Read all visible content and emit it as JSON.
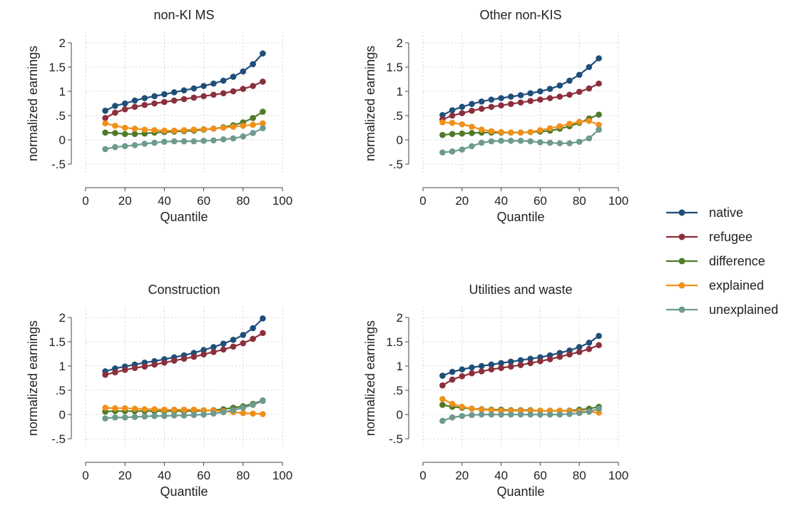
{
  "colors": {
    "native": "#1f4e79",
    "refugee": "#8b2f3c",
    "difference": "#4f7a28",
    "explained": "#f0901a",
    "unexplained": "#6e9a8f"
  },
  "legend": {
    "placement": "right",
    "entries": [
      "native",
      "refugee",
      "difference",
      "explained",
      "unexplained"
    ]
  },
  "chart_data": [
    {
      "type": "line",
      "title": "non-KI MS",
      "xlabel": "Quantile",
      "ylabel": "normalized earnings",
      "xlim": [
        0,
        100
      ],
      "ylim": [
        -0.5,
        2
      ],
      "xticks": [
        0,
        20,
        40,
        60,
        80,
        100
      ],
      "xtick_labels": [
        "0",
        "20",
        "40",
        "60",
        "80",
        "100"
      ],
      "yticks": [
        -0.5,
        0,
        0.5,
        1,
        1.5,
        2
      ],
      "ytick_labels": [
        "-.5",
        "0",
        ".5",
        "1",
        "1.5",
        "2"
      ],
      "grid": true,
      "x": [
        10,
        15,
        20,
        25,
        30,
        35,
        40,
        45,
        50,
        55,
        60,
        65,
        70,
        75,
        80,
        85,
        90
      ],
      "series": [
        {
          "name": "native",
          "values": [
            0.6,
            0.7,
            0.75,
            0.81,
            0.86,
            0.9,
            0.94,
            0.98,
            1.02,
            1.06,
            1.11,
            1.16,
            1.22,
            1.3,
            1.41,
            1.56,
            1.78
          ]
        },
        {
          "name": "refugee",
          "values": [
            0.45,
            0.56,
            0.63,
            0.68,
            0.72,
            0.75,
            0.78,
            0.81,
            0.84,
            0.87,
            0.9,
            0.93,
            0.96,
            1.0,
            1.05,
            1.11,
            1.2
          ]
        },
        {
          "name": "difference",
          "values": [
            0.15,
            0.14,
            0.12,
            0.12,
            0.13,
            0.15,
            0.16,
            0.17,
            0.18,
            0.19,
            0.21,
            0.23,
            0.26,
            0.3,
            0.36,
            0.45,
            0.58
          ]
        },
        {
          "name": "explained",
          "values": [
            0.34,
            0.29,
            0.25,
            0.23,
            0.21,
            0.2,
            0.19,
            0.19,
            0.2,
            0.21,
            0.22,
            0.23,
            0.25,
            0.27,
            0.29,
            0.31,
            0.34
          ]
        },
        {
          "name": "unexplained",
          "values": [
            -0.19,
            -0.15,
            -0.13,
            -0.11,
            -0.08,
            -0.06,
            -0.04,
            -0.03,
            -0.03,
            -0.03,
            -0.02,
            -0.01,
            0.01,
            0.03,
            0.07,
            0.14,
            0.24
          ]
        }
      ]
    },
    {
      "type": "line",
      "title": "Other non-KIS",
      "xlabel": "Quantile",
      "ylabel": "normalized earnings",
      "xlim": [
        0,
        100
      ],
      "ylim": [
        -0.5,
        2
      ],
      "xticks": [
        0,
        20,
        40,
        60,
        80,
        100
      ],
      "xtick_labels": [
        "0",
        "20",
        "40",
        "60",
        "80",
        "100"
      ],
      "yticks": [
        -0.5,
        0,
        0.5,
        1,
        1.5,
        2
      ],
      "ytick_labels": [
        "-.5",
        "0",
        ".5",
        "1",
        "1.5",
        "2"
      ],
      "grid": true,
      "x": [
        10,
        15,
        20,
        25,
        30,
        35,
        40,
        45,
        50,
        55,
        60,
        65,
        70,
        75,
        80,
        85,
        90
      ],
      "series": [
        {
          "name": "native",
          "values": [
            0.51,
            0.61,
            0.68,
            0.74,
            0.79,
            0.83,
            0.86,
            0.89,
            0.92,
            0.96,
            1.0,
            1.05,
            1.12,
            1.22,
            1.34,
            1.5,
            1.68
          ]
        },
        {
          "name": "refugee",
          "values": [
            0.42,
            0.5,
            0.55,
            0.6,
            0.64,
            0.68,
            0.71,
            0.74,
            0.77,
            0.8,
            0.83,
            0.86,
            0.89,
            0.93,
            0.99,
            1.06,
            1.16
          ]
        },
        {
          "name": "difference",
          "values": [
            0.1,
            0.12,
            0.13,
            0.14,
            0.15,
            0.15,
            0.15,
            0.15,
            0.15,
            0.16,
            0.17,
            0.19,
            0.23,
            0.28,
            0.35,
            0.44,
            0.52
          ]
        },
        {
          "name": "explained",
          "values": [
            0.36,
            0.35,
            0.32,
            0.27,
            0.21,
            0.18,
            0.16,
            0.15,
            0.15,
            0.16,
            0.2,
            0.24,
            0.28,
            0.33,
            0.37,
            0.39,
            0.31
          ]
        },
        {
          "name": "unexplained",
          "values": [
            -0.26,
            -0.24,
            -0.2,
            -0.13,
            -0.06,
            -0.03,
            -0.02,
            -0.02,
            -0.02,
            -0.03,
            -0.05,
            -0.06,
            -0.07,
            -0.07,
            -0.04,
            0.03,
            0.21
          ]
        }
      ]
    },
    {
      "type": "line",
      "title": "Construction",
      "xlabel": "Quantile",
      "ylabel": "normalized earnings",
      "xlim": [
        0,
        100
      ],
      "ylim": [
        -0.5,
        2
      ],
      "xticks": [
        0,
        20,
        40,
        60,
        80,
        100
      ],
      "xtick_labels": [
        "0",
        "20",
        "40",
        "60",
        "80",
        "100"
      ],
      "yticks": [
        -0.5,
        0,
        0.5,
        1,
        1.5,
        2
      ],
      "ytick_labels": [
        "-.5",
        "0",
        ".5",
        "1",
        "1.5",
        "2"
      ],
      "grid": true,
      "x": [
        10,
        15,
        20,
        25,
        30,
        35,
        40,
        45,
        50,
        55,
        60,
        65,
        70,
        75,
        80,
        85,
        90
      ],
      "series": [
        {
          "name": "native",
          "values": [
            0.89,
            0.95,
            0.99,
            1.03,
            1.07,
            1.1,
            1.14,
            1.18,
            1.22,
            1.27,
            1.33,
            1.39,
            1.46,
            1.54,
            1.64,
            1.78,
            1.98
          ]
        },
        {
          "name": "refugee",
          "values": [
            0.82,
            0.87,
            0.92,
            0.96,
            0.99,
            1.03,
            1.07,
            1.11,
            1.15,
            1.19,
            1.24,
            1.29,
            1.34,
            1.4,
            1.47,
            1.56,
            1.68
          ]
        },
        {
          "name": "difference",
          "values": [
            0.06,
            0.07,
            0.07,
            0.07,
            0.07,
            0.07,
            0.07,
            0.07,
            0.07,
            0.07,
            0.08,
            0.09,
            0.11,
            0.14,
            0.17,
            0.22,
            0.29
          ]
        },
        {
          "name": "explained",
          "values": [
            0.14,
            0.13,
            0.13,
            0.12,
            0.11,
            0.11,
            0.1,
            0.1,
            0.1,
            0.1,
            0.09,
            0.08,
            0.07,
            0.05,
            0.03,
            0.02,
            0.01
          ]
        },
        {
          "name": "unexplained",
          "values": [
            -0.08,
            -0.06,
            -0.06,
            -0.05,
            -0.04,
            -0.03,
            -0.03,
            -0.02,
            -0.02,
            -0.01,
            0.0,
            0.02,
            0.05,
            0.09,
            0.14,
            0.2,
            0.28
          ]
        }
      ]
    },
    {
      "type": "line",
      "title": "Utilities and waste",
      "xlabel": "Quantile",
      "ylabel": "normalized earnings",
      "xlim": [
        0,
        100
      ],
      "ylim": [
        -0.5,
        2
      ],
      "xticks": [
        0,
        20,
        40,
        60,
        80,
        100
      ],
      "xtick_labels": [
        "0",
        "20",
        "40",
        "60",
        "80",
        "100"
      ],
      "yticks": [
        -0.5,
        0,
        0.5,
        1,
        1.5,
        2
      ],
      "ytick_labels": [
        "-.5",
        "0",
        ".5",
        "1",
        "1.5",
        "2"
      ],
      "grid": true,
      "x": [
        10,
        15,
        20,
        25,
        30,
        35,
        40,
        45,
        50,
        55,
        60,
        65,
        70,
        75,
        80,
        85,
        90
      ],
      "series": [
        {
          "name": "native",
          "values": [
            0.8,
            0.88,
            0.93,
            0.97,
            1.0,
            1.03,
            1.06,
            1.09,
            1.12,
            1.15,
            1.18,
            1.22,
            1.27,
            1.32,
            1.39,
            1.48,
            1.62
          ]
        },
        {
          "name": "refugee",
          "values": [
            0.6,
            0.72,
            0.79,
            0.85,
            0.89,
            0.93,
            0.96,
            0.99,
            1.02,
            1.06,
            1.1,
            1.14,
            1.19,
            1.24,
            1.29,
            1.35,
            1.43
          ]
        },
        {
          "name": "difference",
          "values": [
            0.2,
            0.16,
            0.14,
            0.12,
            0.11,
            0.1,
            0.1,
            0.09,
            0.09,
            0.09,
            0.08,
            0.08,
            0.08,
            0.08,
            0.1,
            0.12,
            0.16
          ]
        },
        {
          "name": "explained",
          "values": [
            0.32,
            0.22,
            0.16,
            0.12,
            0.1,
            0.09,
            0.08,
            0.08,
            0.08,
            0.08,
            0.08,
            0.08,
            0.08,
            0.07,
            0.07,
            0.06,
            0.04
          ]
        },
        {
          "name": "unexplained",
          "values": [
            -0.13,
            -0.06,
            -0.03,
            -0.01,
            0.0,
            0.0,
            0.0,
            0.0,
            0.0,
            0.0,
            0.0,
            0.0,
            0.0,
            0.01,
            0.03,
            0.06,
            0.12
          ]
        }
      ]
    }
  ]
}
